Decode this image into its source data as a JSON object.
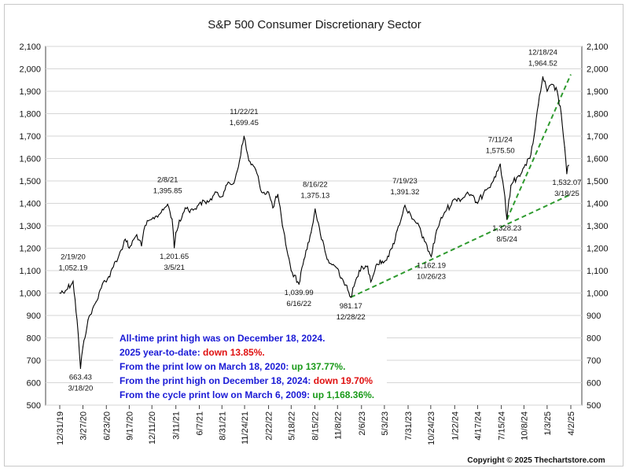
{
  "chart_data": {
    "type": "line",
    "title": "S&P 500 Consumer Discretionary Sector",
    "xlabel": "",
    "ylabel": "",
    "ylim": [
      500,
      2100
    ],
    "y_ticks": [
      500,
      600,
      700,
      800,
      900,
      "1,000",
      "1,100",
      "1,200",
      "1,300",
      "1,400",
      "1,500",
      "1,600",
      "1,700",
      "1,800",
      "1,900",
      "2,000",
      "2,100"
    ],
    "y_tick_values": [
      500,
      600,
      700,
      800,
      900,
      1000,
      1100,
      1200,
      1300,
      1400,
      1500,
      1600,
      1700,
      1800,
      1900,
      2000,
      2100
    ],
    "x_ticks": [
      "12/31/19",
      "3/27/20",
      "6/23/20",
      "9/17/20",
      "12/11/20",
      "3/11/21",
      "6/7/21",
      "8/31/21",
      "11/24/21",
      "2/22/22",
      "5/18/22",
      "8/15/22",
      "11/8/22",
      "2/6/23",
      "5/3/23",
      "7/31/23",
      "10/24/23",
      "1/22/24",
      "4/17/24",
      "7/15/24",
      "10/8/24",
      "1/3/25",
      "4/2/25"
    ],
    "series": [
      {
        "color": "#000000",
        "x": [
          "12/31/19",
          "1/21/20",
          "2/19/20",
          "3/5/20",
          "3/18/20",
          "3/27/20",
          "4/15/20",
          "5/15/20",
          "6/8/20",
          "6/23/20",
          "7/15/20",
          "8/10/20",
          "9/2/20",
          "9/17/20",
          "10/15/20",
          "11/2/20",
          "11/15/20",
          "12/11/20",
          "1/15/21",
          "2/8/21",
          "2/25/21",
          "3/5/21",
          "3/11/21",
          "4/15/21",
          "5/15/21",
          "6/7/21",
          "7/15/21",
          "8/10/21",
          "8/31/21",
          "9/15/21",
          "10/15/21",
          "11/5/21",
          "11/22/21",
          "12/10/21",
          "1/5/22",
          "1/27/22",
          "2/22/22",
          "3/10/22",
          "3/29/22",
          "4/15/22",
          "5/18/22",
          "6/16/22",
          "7/5/22",
          "8/1/22",
          "8/16/22",
          "9/5/22",
          "9/30/22",
          "10/15/22",
          "11/8/22",
          "12/1/22",
          "12/28/22",
          "1/20/23",
          "2/6/23",
          "3/1/23",
          "3/13/23",
          "4/5/23",
          "5/3/23",
          "6/1/23",
          "6/20/23",
          "7/19/23",
          "8/15/23",
          "9/10/23",
          "10/1/23",
          "10/26/23",
          "11/15/23",
          "12/15/23",
          "1/22/24",
          "2/20/24",
          "3/10/24",
          "4/17/24",
          "5/15/24",
          "6/15/24",
          "7/11/24",
          "7/25/24",
          "8/5/24",
          "8/20/24",
          "9/15/24",
          "10/8/24",
          "10/30/24",
          "11/15/24",
          "12/1/24",
          "12/18/24",
          "1/3/25",
          "1/24/25",
          "2/10/25",
          "2/25/25",
          "3/10/25",
          "3/18/25",
          "3/25/25"
        ],
        "y": [
          1000,
          1010,
          1052.19,
          880,
          663.43,
          760,
          880,
          960,
          1040,
          1050,
          1110,
          1170,
          1240,
          1200,
          1260,
          1210,
          1300,
          1330,
          1360,
          1395.85,
          1330,
          1201.65,
          1270,
          1380,
          1370,
          1400,
          1410,
          1450,
          1430,
          1480,
          1490,
          1590,
          1699.45,
          1590,
          1550,
          1450,
          1450,
          1380,
          1440,
          1300,
          1100,
          1039.99,
          1150,
          1270,
          1375.13,
          1260,
          1150,
          1130,
          1110,
          1050,
          981.17,
          1070,
          1120,
          1120,
          1050,
          1130,
          1140,
          1200,
          1280,
          1391.32,
          1330,
          1300,
          1230,
          1162.19,
          1280,
          1360,
          1420,
          1420,
          1450,
          1400,
          1460,
          1500,
          1575.5,
          1460,
          1328.23,
          1480,
          1520,
          1560,
          1600,
          1700,
          1840,
          1964.52,
          1900,
          1930,
          1900,
          1800,
          1650,
          1532.07,
          1570
        ]
      }
    ],
    "trendlines": [
      {
        "color": "#2e9a2e",
        "style": "dashed",
        "x": [
          "12/28/22",
          "4/2/25"
        ],
        "y": [
          981.17,
          1440
        ]
      },
      {
        "color": "#2e9a2e",
        "style": "dashed",
        "x": [
          "8/5/24",
          "4/2/25"
        ],
        "y": [
          1328.23,
          1975
        ]
      }
    ],
    "annotations": [
      {
        "date": "2/19/20",
        "value": "1,052.19",
        "x": "2/19/20",
        "y": 1052.19,
        "pos": "above"
      },
      {
        "date": "3/18/20",
        "value": "663.43",
        "x": "3/18/20",
        "y": 663.43,
        "pos": "below"
      },
      {
        "date": "2/8/21",
        "value": "1,395.85",
        "x": "2/8/21",
        "y": 1395.85,
        "pos": "above"
      },
      {
        "date": "3/5/21",
        "value": "1,201.65",
        "x": "3/5/21",
        "y": 1201.65,
        "pos": "below"
      },
      {
        "date": "11/22/21",
        "value": "1,699.45",
        "x": "11/22/21",
        "y": 1699.45,
        "pos": "above"
      },
      {
        "date": "6/16/22",
        "value": "1,039.99",
        "x": "6/16/22",
        "y": 1039.99,
        "pos": "below"
      },
      {
        "date": "8/16/22",
        "value": "1,375.13",
        "x": "8/16/22",
        "y": 1375.13,
        "pos": "above"
      },
      {
        "date": "12/28/22",
        "value": "981.17",
        "x": "12/28/22",
        "y": 981.17,
        "pos": "below"
      },
      {
        "date": "7/19/23",
        "value": "1,391.32",
        "x": "7/19/23",
        "y": 1391.32,
        "pos": "above"
      },
      {
        "date": "10/26/23",
        "value": "1,162.19",
        "x": "10/26/23",
        "y": 1162.19,
        "pos": "below"
      },
      {
        "date": "7/11/24",
        "value": "1,575.50",
        "x": "7/11/24",
        "y": 1575.5,
        "pos": "above"
      },
      {
        "date": "8/5/24",
        "value": "1,328.23",
        "x": "8/5/24",
        "y": 1328.23,
        "pos": "below"
      },
      {
        "date": "12/18/24",
        "value": "1,964.52",
        "x": "12/18/24",
        "y": 1964.52,
        "pos": "above"
      },
      {
        "date": "3/18/25",
        "value": "1,532.07",
        "x": "3/18/25",
        "y": 1532.07,
        "pos": "below"
      }
    ],
    "grid": true,
    "legend": "none"
  },
  "notes": [
    {
      "parts": [
        {
          "text": "All-time print high was on December 18, 2024.",
          "color": "#1a1ad6"
        }
      ]
    },
    {
      "parts": [
        {
          "text": "2025 year-to-date:  ",
          "color": "#1a1ad6"
        },
        {
          "text": "down 13.85%.",
          "color": "#e01010"
        }
      ]
    },
    {
      "parts": [
        {
          "text": "From the print low on March 18, 2020:  ",
          "color": "#1a1ad6"
        },
        {
          "text": "up 137.77%.",
          "color": "#1a9a1a"
        }
      ]
    },
    {
      "parts": [
        {
          "text": "From the print high on December 18, 2024:  ",
          "color": "#1a1ad6"
        },
        {
          "text": "down 19.70%",
          "color": "#e01010"
        }
      ]
    },
    {
      "parts": [
        {
          "text": "From the cycle print low on March 6, 2009:  ",
          "color": "#1a1ad6"
        },
        {
          "text": "up 1,168.36%.",
          "color": "#1a9a1a"
        }
      ]
    }
  ],
  "copyright": "Copyright © 2025 Thechartstore.com",
  "colors": {
    "plot_background": "#ffffff",
    "gridline": "#d6d6d6",
    "price_line": "#000000",
    "trendline": "#2e9a2e"
  }
}
